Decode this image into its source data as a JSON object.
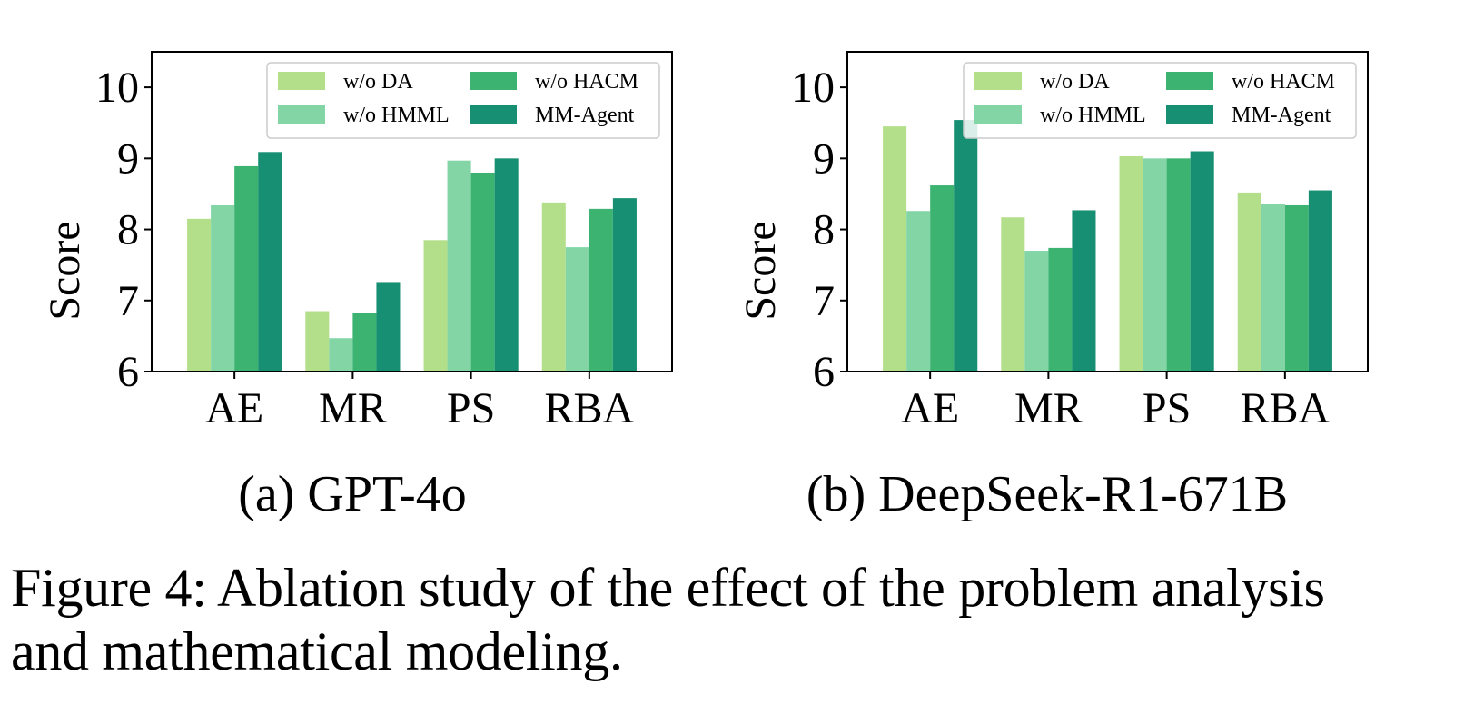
{
  "chart_data": [
    {
      "type": "bar",
      "title": "",
      "subtitle": "(a) GPT-4o",
      "xlabel": "",
      "ylabel": "Score",
      "ylim": [
        6,
        10.5
      ],
      "yticks": [
        6,
        7,
        8,
        9,
        10
      ],
      "categories": [
        "AE",
        "MR",
        "PS",
        "RBA"
      ],
      "legend_position": "top-right",
      "series": [
        {
          "name": "w/o DA",
          "color": "#b3df8a",
          "values": [
            8.15,
            6.85,
            7.85,
            8.38
          ]
        },
        {
          "name": "w/o HMML",
          "color": "#83d5a6",
          "values": [
            8.34,
            6.47,
            8.97,
            7.75
          ]
        },
        {
          "name": "w/o HACM",
          "color": "#3db372",
          "values": [
            8.89,
            6.83,
            8.8,
            8.29
          ]
        },
        {
          "name": "MM-Agent",
          "color": "#178f72",
          "values": [
            9.09,
            7.26,
            9.0,
            8.44
          ]
        }
      ]
    },
    {
      "type": "bar",
      "title": "",
      "subtitle": "(b) DeepSeek-R1-671B",
      "xlabel": "",
      "ylabel": "Score",
      "ylim": [
        6,
        10.5
      ],
      "yticks": [
        6,
        7,
        8,
        9,
        10
      ],
      "categories": [
        "AE",
        "MR",
        "PS",
        "RBA"
      ],
      "legend_position": "top-right",
      "series": [
        {
          "name": "w/o DA",
          "color": "#b3df8a",
          "values": [
            9.45,
            8.17,
            9.03,
            8.52
          ]
        },
        {
          "name": "w/o HMML",
          "color": "#83d5a6",
          "values": [
            8.26,
            7.7,
            9.0,
            8.36
          ]
        },
        {
          "name": "w/o HACM",
          "color": "#3db372",
          "values": [
            8.62,
            7.74,
            9.0,
            8.34
          ]
        },
        {
          "name": "MM-Agent",
          "color": "#178f72",
          "values": [
            9.54,
            8.27,
            9.1,
            8.55
          ]
        }
      ]
    }
  ],
  "caption": {
    "line1": "Figure 4: Ablation study of the effect of the problem analysis",
    "line2": "and mathematical modeling."
  }
}
